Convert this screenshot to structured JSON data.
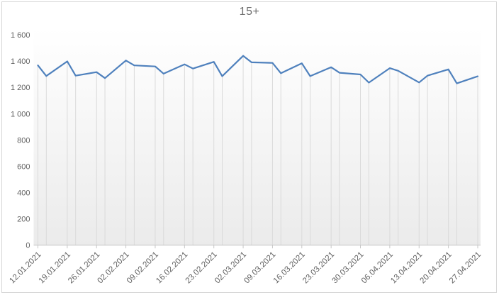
{
  "chart_data": {
    "type": "line",
    "title": "15+",
    "x_axis": {
      "tick_labels": [
        "12.01.2021",
        "19.01.2021",
        "26.01.2021",
        "02.02.2021",
        "09.02.2021",
        "16.02.2021",
        "23.02.2021",
        "02.03.2021",
        "09.03.2021",
        "16.03.2021",
        "23.03.2021",
        "30.03.2021",
        "06.04.2021",
        "13.04.2021",
        "20.04.2021",
        "27.04.2021"
      ],
      "tick_day_offsets": [
        0,
        7,
        14,
        21,
        28,
        35,
        42,
        49,
        56,
        63,
        70,
        77,
        84,
        91,
        98,
        105
      ]
    },
    "y_axis": {
      "min": 0,
      "max": 1600,
      "step": 200,
      "tick_labels": [
        "0",
        "200",
        "400",
        "600",
        "800",
        "1 000",
        "1 200",
        "1 400",
        "1 600"
      ]
    },
    "series": [
      {
        "name": "15+",
        "dates": [
          "12.01.2021",
          "14.01.2021",
          "19.01.2021",
          "21.01.2021",
          "26.01.2021",
          "28.01.2021",
          "02.02.2021",
          "04.02.2021",
          "09.02.2021",
          "11.02.2021",
          "16.02.2021",
          "18.02.2021",
          "23.02.2021",
          "25.02.2021",
          "02.03.2021",
          "04.03.2021",
          "09.03.2021",
          "11.03.2021",
          "16.03.2021",
          "18.03.2021",
          "23.03.2021",
          "25.03.2021",
          "30.03.2021",
          "01.04.2021",
          "06.04.2021",
          "08.04.2021",
          "13.04.2021",
          "15.04.2021",
          "20.04.2021",
          "22.04.2021",
          "27.04.2021"
        ],
        "day_offsets": [
          0,
          2,
          7,
          9,
          14,
          16,
          21,
          23,
          28,
          30,
          35,
          37,
          42,
          44,
          49,
          51,
          56,
          58,
          63,
          65,
          70,
          72,
          77,
          79,
          84,
          86,
          91,
          93,
          98,
          100,
          105
        ],
        "values": [
          1367,
          1286,
          1398,
          1289,
          1316,
          1270,
          1404,
          1367,
          1359,
          1304,
          1375,
          1343,
          1394,
          1285,
          1440,
          1390,
          1386,
          1307,
          1383,
          1285,
          1353,
          1311,
          1298,
          1236,
          1346,
          1326,
          1237,
          1289,
          1337,
          1230,
          1284
        ]
      }
    ],
    "grid": {
      "drop_lines": true,
      "horizontal_gridlines": false
    },
    "legend": {
      "visible": false
    }
  },
  "colors": {
    "series_line": "#4F81BD",
    "title_text": "#6e6e6e",
    "axis_label_text": "#5f5f5f",
    "axis_line": "#c6c6c6",
    "drop_line": "#dadada",
    "chart_border": "#d7d7d7",
    "plot_fill_top": "#ffffff",
    "plot_fill_bottom": "#ebebeb"
  }
}
